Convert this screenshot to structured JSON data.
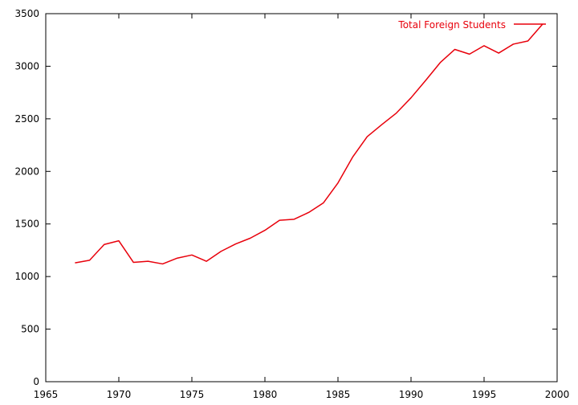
{
  "colors": {
    "series": "#e8000b",
    "axis": "#000000",
    "background": "#ffffff"
  },
  "chart_data": {
    "type": "line",
    "title": "",
    "xlabel": "",
    "ylabel": "",
    "xlim": [
      1965,
      2000
    ],
    "ylim": [
      0,
      3500
    ],
    "xticks": [
      1965,
      1970,
      1975,
      1980,
      1985,
      1990,
      1995,
      2000
    ],
    "yticks": [
      0,
      500,
      1000,
      1500,
      2000,
      2500,
      3000,
      3500
    ],
    "grid": false,
    "legend_position": "top-right",
    "series": [
      {
        "name": "Total Foreign Students",
        "x": [
          1967,
          1968,
          1969,
          1970,
          1971,
          1972,
          1973,
          1974,
          1975,
          1976,
          1977,
          1978,
          1979,
          1980,
          1981,
          1982,
          1983,
          1984,
          1985,
          1986,
          1987,
          1988,
          1989,
          1990,
          1991,
          1992,
          1993,
          1994,
          1995,
          1996,
          1997,
          1998,
          1999
        ],
        "y": [
          1130,
          1155,
          1305,
          1340,
          1135,
          1145,
          1120,
          1175,
          1205,
          1145,
          1240,
          1310,
          1365,
          1440,
          1535,
          1545,
          1610,
          1700,
          1890,
          2135,
          2330,
          2445,
          2555,
          2700,
          2865,
          3035,
          3160,
          3115,
          3195,
          3125,
          3210,
          3240,
          3400
        ]
      }
    ]
  }
}
